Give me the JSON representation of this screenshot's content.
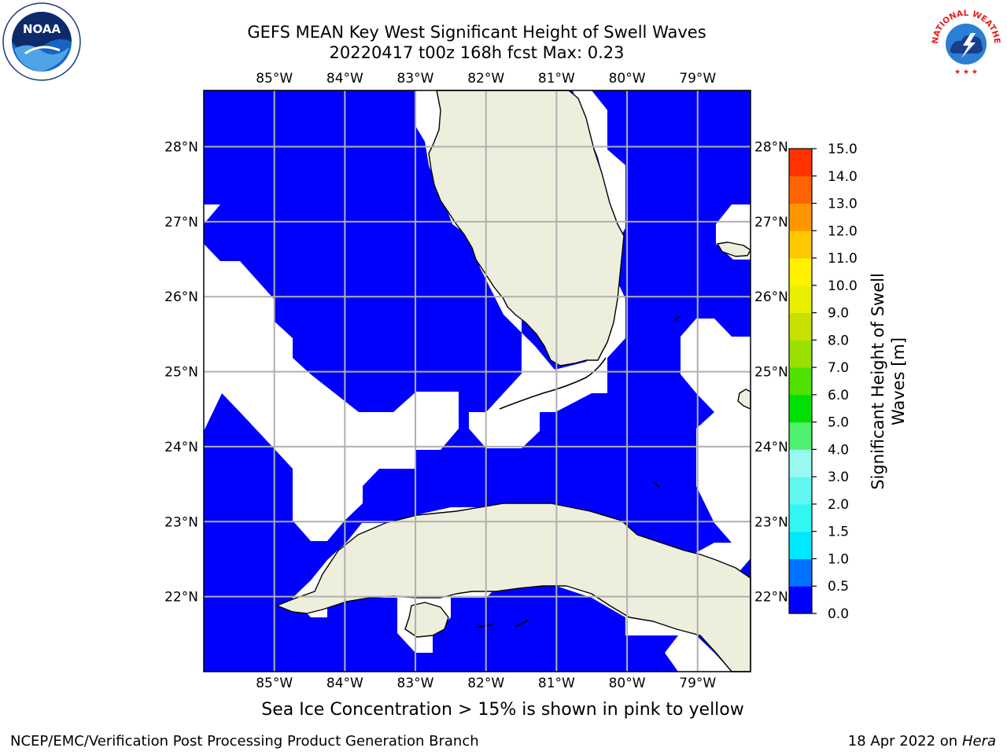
{
  "header": {
    "title_line1": "GEFS MEAN Key West Significant Height of Swell Waves",
    "title_line2": "20220417 t00z 168h fcst   Max: 0.23"
  },
  "map": {
    "lon_labels": [
      "85°W",
      "84°W",
      "83°W",
      "82°W",
      "81°W",
      "80°W",
      "79°W"
    ],
    "lat_labels": [
      "28°N",
      "27°N",
      "26°N",
      "25°N",
      "24°N",
      "23°N",
      "22°N"
    ],
    "lon_values": [
      -85,
      -84,
      -83,
      -82,
      -81,
      -80,
      -79
    ],
    "lat_values": [
      28,
      27,
      26,
      25,
      24,
      23,
      22
    ],
    "extent": {
      "lon_min": -86.0,
      "lon_max": -78.25,
      "lat_min": 21.0,
      "lat_max": 28.75
    },
    "colors": {
      "ocean": "#0000ff",
      "missing": "#ffffff",
      "land": "#eeeedc",
      "grid": "#b0b0b0"
    }
  },
  "colorbar": {
    "label_line1": "Significant Height of Swell",
    "label_line2": "Waves [m]",
    "tick_labels": [
      "0.0",
      "0.5",
      "1.0",
      "1.5",
      "2.0",
      "3.0",
      "4.0",
      "5.0",
      "6.0",
      "7.0",
      "8.0",
      "9.0",
      "10.0",
      "11.0",
      "12.0",
      "13.0",
      "14.0",
      "15.0"
    ],
    "colors": [
      "#0000ff",
      "#0072ff",
      "#00e8ff",
      "#30f8f0",
      "#60f8f0",
      "#99f8f0",
      "#50f070",
      "#00e000",
      "#50e000",
      "#99e000",
      "#c8e000",
      "#e8f000",
      "#fff000",
      "#ffc800",
      "#ff9600",
      "#ff6400",
      "#ff3200",
      "#ff0000"
    ]
  },
  "caption": "Sea Ice Concentration > 15% is shown in pink to yellow",
  "footer": {
    "left": "NCEP/EMC/Verification Post Processing Product Generation Branch",
    "right_date": "18 Apr 2022 on",
    "right_host": "Hera"
  },
  "logos": {
    "noaa_text": "NOAA",
    "nws_text": "NATIONAL WEATHER SERVICE"
  }
}
